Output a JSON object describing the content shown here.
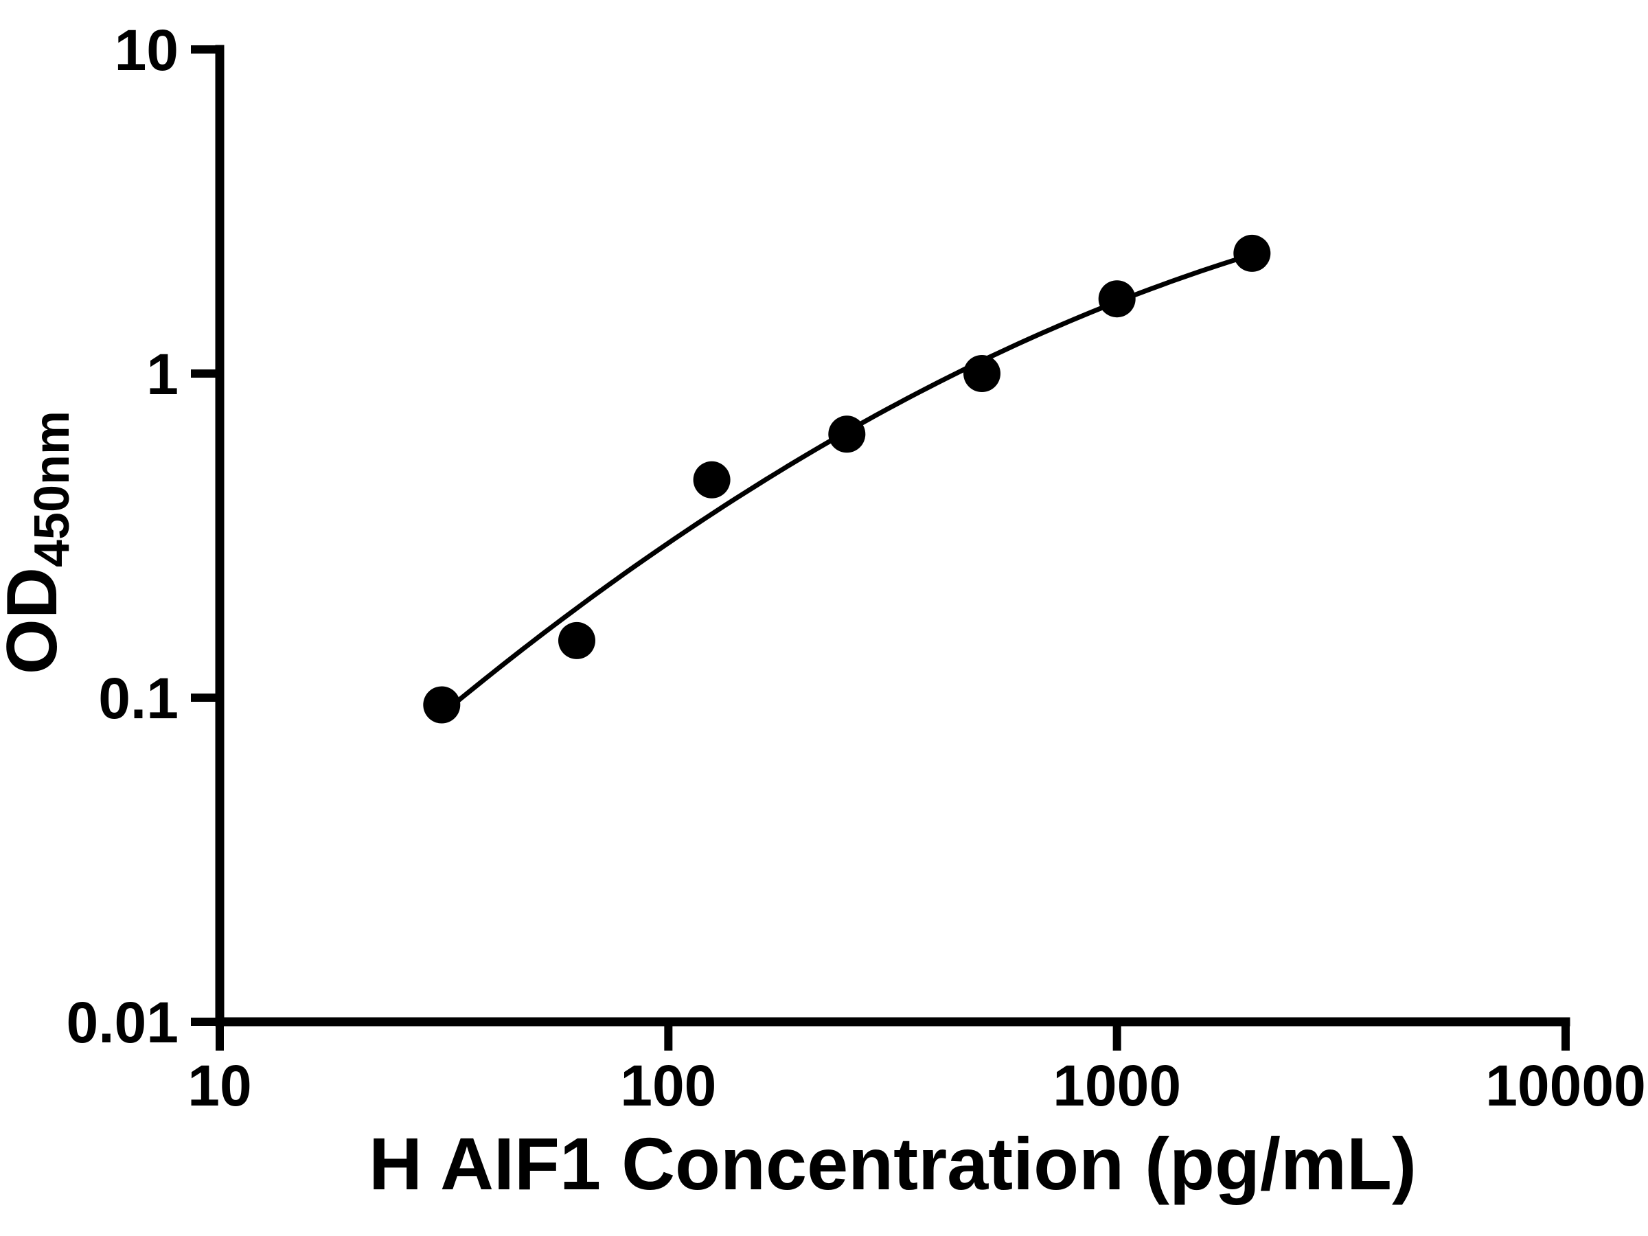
{
  "chart_data": {
    "type": "scatter",
    "title": "",
    "xlabel": "H AIF1 Concentration (pg/mL)",
    "ylabel": "OD450nm",
    "ylabel_base": "OD",
    "ylabel_sub": "450nm",
    "x_scale": "log",
    "y_scale": "log",
    "xlim": [
      10,
      10000
    ],
    "ylim": [
      0.01,
      10
    ],
    "x_ticks": [
      10,
      100,
      1000,
      10000
    ],
    "x_tick_labels": [
      "10",
      "100",
      "1000",
      "10000"
    ],
    "y_ticks": [
      0.01,
      0.1,
      1,
      10
    ],
    "y_tick_labels": [
      "0.01",
      "0.1",
      "1",
      "10"
    ],
    "grid": false,
    "legend": false,
    "has_fit_line": true,
    "points": [
      {
        "x": 31.25,
        "y": 0.095
      },
      {
        "x": 62.5,
        "y": 0.15
      },
      {
        "x": 125,
        "y": 0.47
      },
      {
        "x": 250,
        "y": 0.65
      },
      {
        "x": 500,
        "y": 1.0
      },
      {
        "x": 1000,
        "y": 1.7
      },
      {
        "x": 2000,
        "y": 2.35
      }
    ],
    "marker_color": "#000000",
    "line_color": "#000000",
    "axis_color": "#000000",
    "background_color": "#ffffff"
  }
}
